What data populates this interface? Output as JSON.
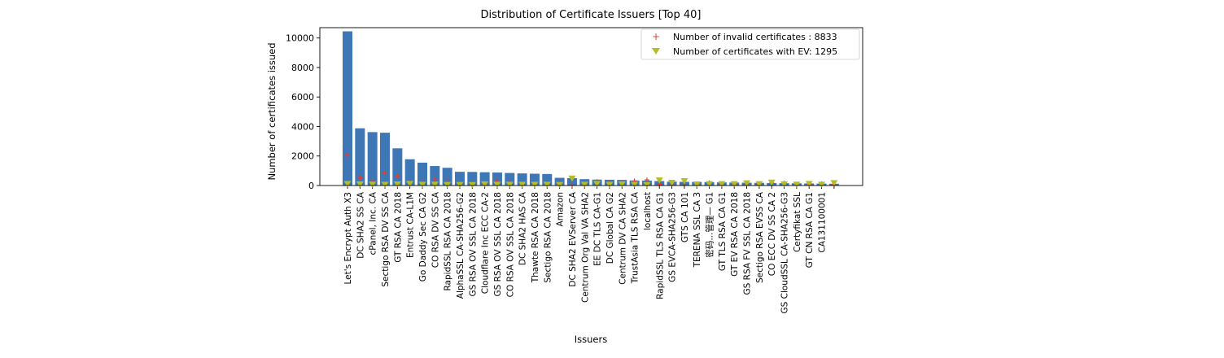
{
  "chart_data": {
    "type": "bar",
    "title": "Distribution of Certificate Issuers [Top 40]",
    "xlabel": "Issuers",
    "ylabel": "Number of certificates issued",
    "ylim": [
      0,
      10700
    ],
    "yticks": [
      0,
      2000,
      4000,
      6000,
      8000,
      10000
    ],
    "grid": false,
    "legend_position": "top-right",
    "categories": [
      "Let's Encrypt Auth X3",
      "DC SHA2 SS CA",
      "cPanel, Inc. CA",
      "Sectigo RSA DV SS CA",
      "GT RSA CA 2018",
      "Entrust CA-L1M",
      "Go Daddy Sec CA G2",
      "CO RSA DV SS CA",
      "RapidSSL RSA CA 2018",
      "AlphaSSL CA-SHA256-G2",
      "GS RSA OV SSL CA 2018",
      "Cloudflare Inc ECC CA-2",
      "GS RSA OV SSL CA 2018",
      "CO RSA OV SSL CA 2018",
      "DC SHA2 HAS CA",
      "Thawte RSA CA 2018",
      "Sectigo RSA CA 2018",
      "Amazon",
      "DC SHA2 EVServer CA",
      "Centrum Org Val VA SHA2",
      "EE DC TLS CA-G1",
      "DC Global CA G2",
      "Centrum DV CA SHA2",
      "TrustAsia TLS RSA CA",
      "localhost",
      "RapidSSL TLS RSA CA G1",
      "GS EVCA-SHA256-G3",
      "GTS CA 101",
      "TERENA SSL CA 3",
      "密码...管理— G1",
      "GT TLS RSA CA G1",
      "GT EV RSA CA 2018",
      "GS RSA FV SSL CA 2018",
      "Sectigo RSA EVSS CA",
      "CO ECC DV SS CA 2",
      "GS CloudSSL CA-SHA256-G3",
      "Certyfikat SSL",
      "GT CN RSA CA G1",
      "CA131100001",
      ""
    ],
    "series": [
      {
        "kind": "bar",
        "color": "#3d77b5",
        "values": [
          10450,
          3880,
          3620,
          3580,
          2520,
          1780,
          1550,
          1320,
          1200,
          930,
          920,
          900,
          880,
          850,
          820,
          800,
          780,
          520,
          500,
          430,
          400,
          390,
          380,
          340,
          330,
          300,
          260,
          250,
          240,
          230,
          210,
          200,
          190,
          180,
          170,
          160,
          150,
          140,
          130,
          120
        ]
      },
      {
        "kind": "marker-plus",
        "name": "Number of invalid certificates : 8833",
        "color": "#d9413a",
        "values": [
          2050,
          520,
          330,
          870,
          620,
          220,
          230,
          380,
          360,
          130,
          120,
          100,
          280,
          170,
          110,
          70,
          90,
          60,
          20,
          120,
          260,
          200,
          210,
          310,
          380,
          90,
          100,
          130,
          80,
          180,
          60,
          90,
          110,
          70,
          170,
          160,
          40,
          90,
          120,
          80
        ]
      },
      {
        "kind": "marker-triangle",
        "name": "Number of certificates with EV: 1295",
        "color": "#b5bd26",
        "values": [
          110,
          90,
          70,
          60,
          80,
          120,
          60,
          70,
          50,
          50,
          40,
          90,
          60,
          60,
          60,
          60,
          60,
          50,
          480,
          60,
          120,
          60,
          90,
          60,
          40,
          350,
          190,
          300,
          80,
          100,
          100,
          100,
          160,
          100,
          210,
          90,
          70,
          120,
          60,
          170
        ]
      }
    ]
  }
}
